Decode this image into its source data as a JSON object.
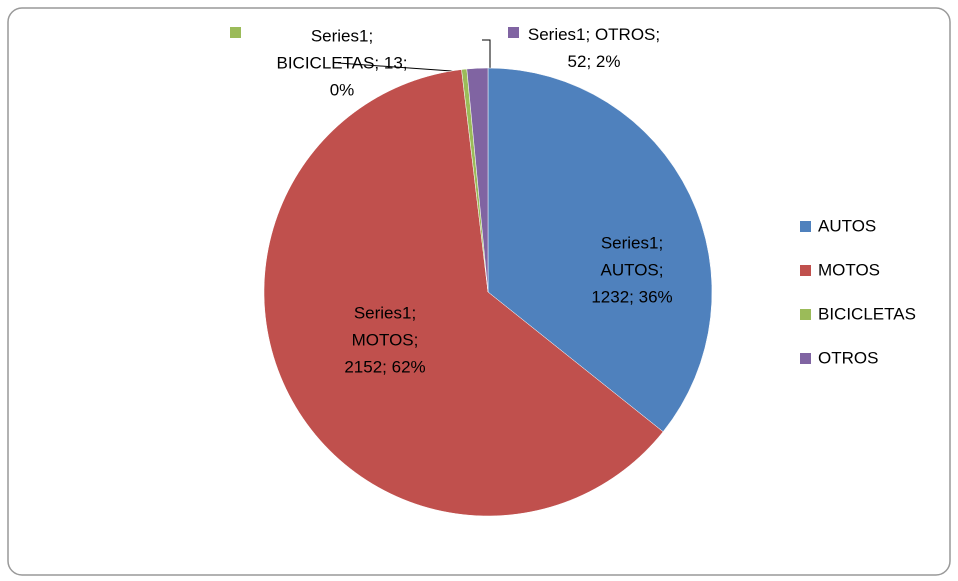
{
  "chart_data": {
    "type": "pie",
    "series_name": "Series1",
    "categories": [
      "AUTOS",
      "MOTOS",
      "BICICLETAS",
      "OTROS"
    ],
    "values": [
      1232,
      2152,
      13,
      52
    ],
    "value_labels": [
      "Series1; AUTOS; 1232; 36%",
      "Series1; MOTOS; 2152; 62%",
      "Series1; BICICLETAS; 13; 0%",
      "Series1; OTROS; 52; 2%"
    ],
    "colors": [
      "#4f81bd",
      "#c0504d",
      "#9bbb59",
      "#8064a2"
    ],
    "legend": "right"
  }
}
